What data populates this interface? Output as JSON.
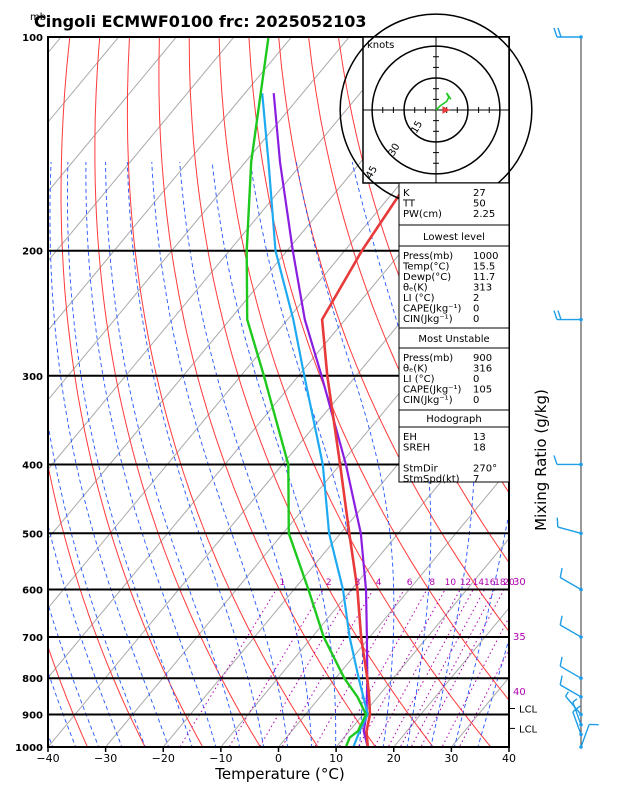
{
  "chart_data": {
    "type": "skewt",
    "title": "Cingoli ECMWF0100  frc: 2025052103",
    "pressure_unit": "mb",
    "xlabel": "Temperature (°C)",
    "right_label": "Mixing Ratio (g/kg)",
    "xlim": [
      -40,
      40
    ],
    "plim": [
      1000,
      100
    ],
    "x_ticks": [
      "−40",
      "−30",
      "−20",
      "−10",
      "0",
      "10",
      "20",
      "30",
      "40"
    ],
    "p_ticks": [
      "100",
      "200",
      "300",
      "400",
      "500",
      "600",
      "700",
      "800",
      "900",
      "1000"
    ],
    "mixing_ratio_labels": [
      "1",
      "2",
      "3",
      "4",
      "6",
      "8",
      "10",
      "12",
      "14",
      "16",
      "18",
      "20",
      "25",
      "30"
    ],
    "theta_e_labels": [
      "30",
      "35",
      "40"
    ],
    "lcl_label": "LCL",
    "temperature": [
      {
        "p": 1000,
        "t": 15.5
      },
      {
        "p": 950,
        "t": 13.0
      },
      {
        "p": 900,
        "t": 11.2
      },
      {
        "p": 850,
        "t": 8.5
      },
      {
        "p": 800,
        "t": 5.5
      },
      {
        "p": 700,
        "t": -1.5
      },
      {
        "p": 600,
        "t": -9.0
      },
      {
        "p": 500,
        "t": -18.5
      },
      {
        "p": 400,
        "t": -30.0
      },
      {
        "p": 300,
        "t": -45.0
      },
      {
        "p": 250,
        "t": -54.0
      },
      {
        "p": 200,
        "t": -57.0
      },
      {
        "p": 150,
        "t": -59.5
      },
      {
        "p": 100,
        "t": -62.0
      }
    ],
    "dewpoint": [
      {
        "p": 1000,
        "t": 11.7
      },
      {
        "p": 970,
        "t": 11.0
      },
      {
        "p": 950,
        "t": 11.5
      },
      {
        "p": 900,
        "t": 10.5
      },
      {
        "p": 850,
        "t": 6.5
      },
      {
        "p": 800,
        "t": 1.5
      },
      {
        "p": 700,
        "t": -8.0
      },
      {
        "p": 600,
        "t": -17.5
      },
      {
        "p": 500,
        "t": -29.0
      },
      {
        "p": 400,
        "t": -39.0
      },
      {
        "p": 300,
        "t": -56.0
      },
      {
        "p": 250,
        "t": -67.0
      },
      {
        "p": 200,
        "t": -77.0
      },
      {
        "p": 150,
        "t": -89.0
      },
      {
        "p": 100,
        "t": -104.0
      }
    ],
    "parcel": [
      {
        "p": 1000,
        "t": 15.5
      },
      {
        "p": 950,
        "t": 12.5
      },
      {
        "p": 900,
        "t": 10.6
      },
      {
        "p": 800,
        "t": 5.5
      },
      {
        "p": 700,
        "t": -0.5
      },
      {
        "p": 600,
        "t": -7.5
      },
      {
        "p": 500,
        "t": -16.5
      },
      {
        "p": 400,
        "t": -29.0
      },
      {
        "p": 300,
        "t": -46.0
      },
      {
        "p": 250,
        "t": -57.0
      },
      {
        "p": 200,
        "t": -69.0
      },
      {
        "p": 150,
        "t": -84.0
      },
      {
        "p": 120,
        "t": -95.0
      }
    ],
    "wetbulb": [
      {
        "p": 1000,
        "t": 13.0
      },
      {
        "p": 950,
        "t": 11.8
      },
      {
        "p": 900,
        "t": 10.8
      },
      {
        "p": 800,
        "t": 4.0
      },
      {
        "p": 700,
        "t": -3.5
      },
      {
        "p": 600,
        "t": -11.5
      },
      {
        "p": 500,
        "t": -22.0
      },
      {
        "p": 400,
        "t": -33.0
      },
      {
        "p": 300,
        "t": -49.0
      },
      {
        "p": 250,
        "t": -59.0
      },
      {
        "p": 200,
        "t": -72.0
      },
      {
        "p": 150,
        "t": -86.0
      },
      {
        "p": 120,
        "t": -97.0
      }
    ],
    "wind_barbs": [
      {
        "p": 100,
        "dir": 270,
        "spd": 20
      },
      {
        "p": 250,
        "dir": 270,
        "spd": 20
      },
      {
        "p": 400,
        "dir": 270,
        "spd": 10
      },
      {
        "p": 500,
        "dir": 285,
        "spd": 10
      },
      {
        "p": 600,
        "dir": 300,
        "spd": 10
      },
      {
        "p": 700,
        "dir": 300,
        "spd": 10
      },
      {
        "p": 800,
        "dir": 300,
        "spd": 10
      },
      {
        "p": 850,
        "dir": 300,
        "spd": 10
      },
      {
        "p": 900,
        "dir": 320,
        "spd": 5
      },
      {
        "p": 930,
        "dir": 340,
        "spd": 5
      },
      {
        "p": 960,
        "dir": 340,
        "spd": 10
      },
      {
        "p": 1000,
        "dir": 20,
        "spd": 10
      }
    ],
    "hodograph": {
      "unit_label": "knots",
      "ring_labels": [
        "15",
        "30",
        "45"
      ],
      "points": [
        [
          0,
          0
        ],
        [
          2,
          2
        ],
        [
          5,
          4
        ],
        [
          6,
          6
        ],
        [
          5,
          8
        ],
        [
          7,
          5
        ]
      ],
      "storm_motion": [
        7,
        0
      ]
    },
    "indices": {
      "top": [
        [
          "K",
          "27"
        ],
        [
          "TT",
          "50"
        ],
        [
          "PW(cm)",
          "2.25"
        ]
      ],
      "lowest_title": "Lowest level",
      "lowest": [
        [
          "Press(mb)",
          "1000"
        ],
        [
          "Temp(°C)",
          "15.5"
        ],
        [
          "Dewp(°C)",
          "11.7"
        ],
        [
          "θₑ(K)",
          "313"
        ],
        [
          "LI  (°C)",
          "2"
        ],
        [
          "CAPE(Jkg⁻¹)",
          "0"
        ],
        [
          "CIN(Jkg⁻¹)",
          "0"
        ]
      ],
      "mu_title": "Most Unstable",
      "mu": [
        [
          "Press(mb)",
          "900"
        ],
        [
          "θₑ(K)",
          "316"
        ],
        [
          "LI  (°C)",
          "0"
        ],
        [
          "CAPE(Jkg⁻¹)",
          "105"
        ],
        [
          "CIN(Jkg⁻¹)",
          "0"
        ]
      ],
      "hodo_title": "Hodograph",
      "hodo": [
        [
          "EH",
          "13"
        ],
        [
          "SREH",
          "18"
        ],
        [
          "",
          ""
        ],
        [
          "StmDir",
          "270°"
        ],
        [
          "StmSpd(kt)",
          "7"
        ]
      ]
    },
    "colors": {
      "temperature": "#e83a3a",
      "dewpoint": "#1ec81e",
      "parcel": "#8a1ee0",
      "wetbulb": "#1eaaf0",
      "isotherm": "#a9a9a9",
      "dry_adiabat": "#ff3a3a",
      "moist_adiabat": "#2255ff",
      "mixing_ratio": "#b000b0",
      "wind_barb": "#1e9ee8"
    }
  }
}
